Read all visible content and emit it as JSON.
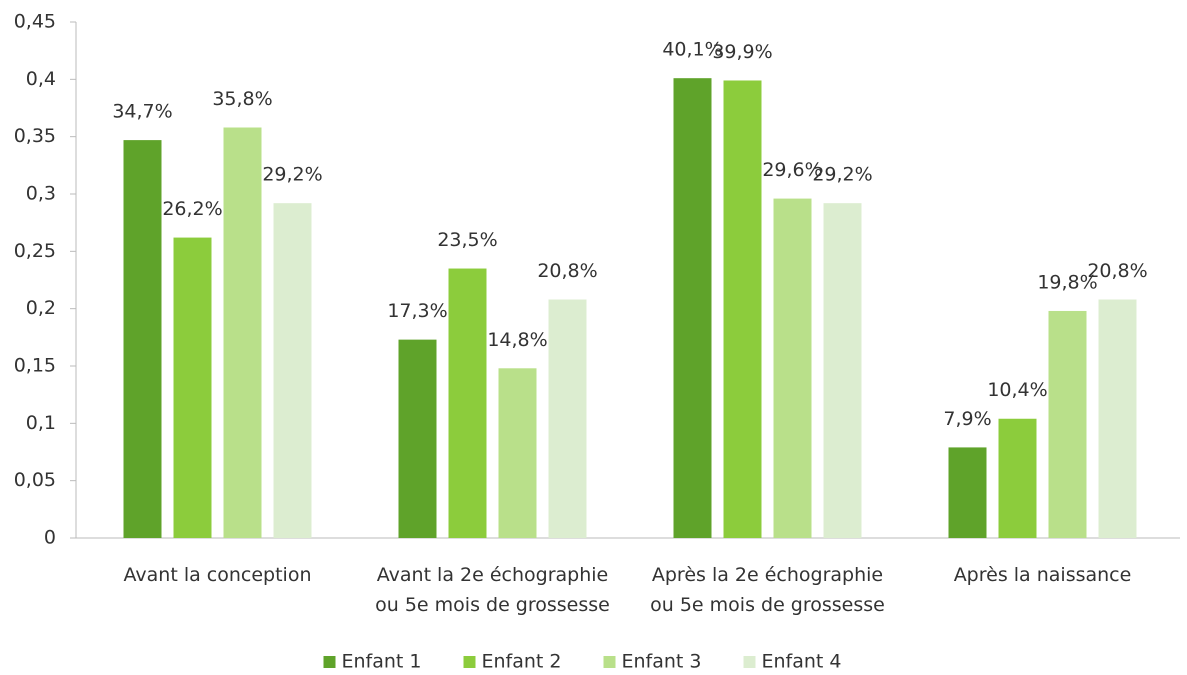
{
  "chart_data": {
    "type": "bar",
    "categories": [
      "Avant la conception",
      "Avant la 2e échographie\nou 5e mois de grossesse",
      "Après la 2e échographie\nou 5e mois de grossesse",
      "Après la naissance"
    ],
    "series": [
      {
        "name": "Enfant 1",
        "color": "#5fa32a",
        "values": [
          0.347,
          0.173,
          0.401,
          0.079
        ],
        "value_labels": [
          "34,7%",
          "17,3%",
          "40,1%",
          "7,9%"
        ]
      },
      {
        "name": "Enfant 2",
        "color": "#8ccc3c",
        "values": [
          0.262,
          0.235,
          0.399,
          0.104
        ],
        "value_labels": [
          "26,2%",
          "23,5%",
          "39,9%",
          "10,4%"
        ]
      },
      {
        "name": "Enfant 3",
        "color": "#b9e08a",
        "values": [
          0.358,
          0.148,
          0.296,
          0.198
        ],
        "value_labels": [
          "35,8%",
          "14,8%",
          "29,6%",
          "19,8%"
        ]
      },
      {
        "name": "Enfant 4",
        "color": "#dcedd0",
        "values": [
          0.292,
          0.208,
          0.292,
          0.208
        ],
        "value_labels": [
          "29,2%",
          "20,8%",
          "29,2%",
          "20,8%"
        ]
      }
    ],
    "ylim": [
      0,
      0.45
    ],
    "yticks": [
      0,
      {
        "value": 0.05,
        "label": "0,05"
      },
      {
        "value": 0.1,
        "label": "0,1"
      },
      {
        "value": 0.15,
        "label": "0,15"
      },
      {
        "value": 0.2,
        "label": "0,2"
      },
      {
        "value": 0.25,
        "label": "0,25"
      },
      {
        "value": 0.3,
        "label": "0,3"
      },
      {
        "value": 0.35,
        "label": "0,35"
      },
      {
        "value": 0.4,
        "label": "0,4"
      },
      {
        "value": 0.45,
        "label": "0,45"
      }
    ],
    "grid": false,
    "legend": "bottom"
  }
}
